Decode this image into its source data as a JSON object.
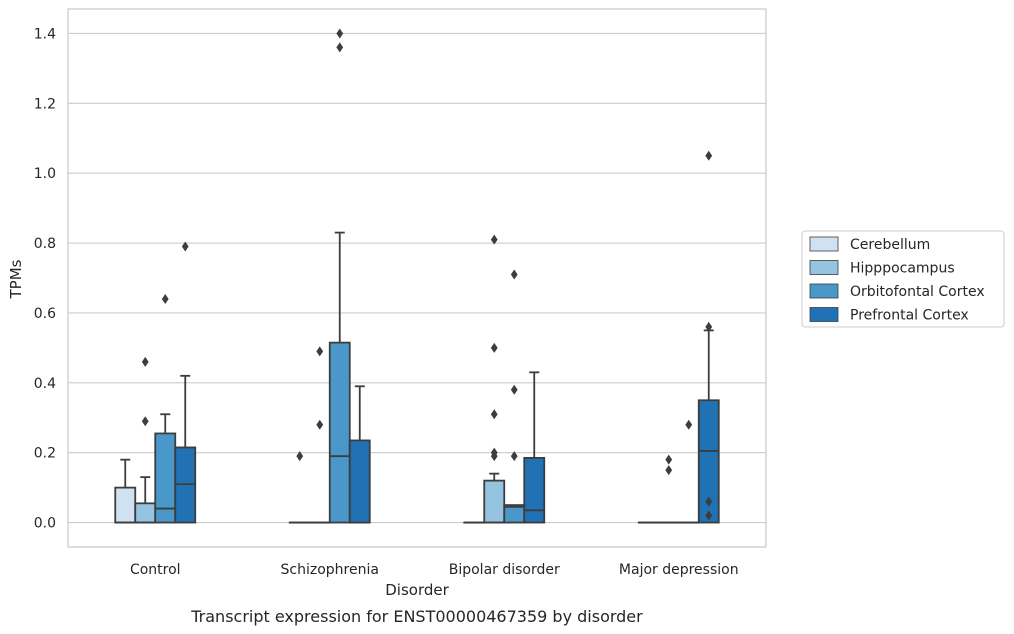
{
  "chart_data": {
    "type": "box",
    "caption": "Transcript expression for ENST00000467359 by disorder",
    "xlabel": "Disorder",
    "ylabel": "TPMs",
    "ylim": [
      -0.07,
      1.47
    ],
    "yticks": [
      "0.0",
      "0.2",
      "0.4",
      "0.6",
      "0.8",
      "1.0",
      "1.2",
      "1.4"
    ],
    "categories": [
      "Control",
      "Schizophrenia",
      "Bipolar disorder",
      "Major depression"
    ],
    "grid": true,
    "legend_position": "right",
    "series": [
      {
        "name": "Cerebellum",
        "color": "#d0e1f2",
        "boxes": [
          {
            "q1": 0.0,
            "median": 0.0,
            "q3": 0.1,
            "whislo": 0.0,
            "whishi": 0.18,
            "fliers": []
          },
          {
            "q1": 0.0,
            "median": 0.0,
            "q3": 0.0,
            "whislo": 0.0,
            "whishi": 0.0,
            "fliers": [
              0.19
            ]
          },
          {
            "q1": 0.0,
            "median": 0.0,
            "q3": 0.0,
            "whislo": 0.0,
            "whishi": 0.0,
            "fliers": []
          },
          {
            "q1": 0.0,
            "median": 0.0,
            "q3": 0.0,
            "whislo": 0.0,
            "whishi": 0.0,
            "fliers": []
          }
        ]
      },
      {
        "name": "Hipppocampus",
        "color": "#94c4df",
        "boxes": [
          {
            "q1": 0.0,
            "median": 0.0,
            "q3": 0.055,
            "whislo": 0.0,
            "whishi": 0.13,
            "fliers": [
              0.29,
              0.46
            ]
          },
          {
            "q1": 0.0,
            "median": 0.0,
            "q3": 0.0,
            "whislo": 0.0,
            "whishi": 0.0,
            "fliers": [
              0.28,
              0.49
            ]
          },
          {
            "q1": 0.0,
            "median": 0.0,
            "q3": 0.12,
            "whislo": 0.0,
            "whishi": 0.14,
            "fliers": [
              0.19,
              0.2,
              0.31,
              0.5,
              0.81
            ]
          },
          {
            "q1": 0.0,
            "median": 0.0,
            "q3": 0.0,
            "whislo": 0.0,
            "whishi": 0.0,
            "fliers": [
              0.15,
              0.18
            ]
          }
        ]
      },
      {
        "name": "Orbitofontal Cortex",
        "color": "#4a98c9",
        "boxes": [
          {
            "q1": 0.0,
            "median": 0.04,
            "q3": 0.255,
            "whislo": 0.0,
            "whishi": 0.31,
            "fliers": [
              0.64
            ]
          },
          {
            "q1": 0.0,
            "median": 0.19,
            "q3": 0.515,
            "whislo": 0.0,
            "whishi": 0.83,
            "fliers": [
              1.36,
              1.4
            ]
          },
          {
            "q1": 0.0,
            "median": 0.045,
            "q3": 0.05,
            "whislo": 0.0,
            "whishi": 0.05,
            "fliers": [
              0.19,
              0.38,
              0.71
            ]
          },
          {
            "q1": 0.0,
            "median": 0.0,
            "q3": 0.0,
            "whislo": 0.0,
            "whishi": 0.0,
            "fliers": [
              0.28
            ]
          }
        ]
      },
      {
        "name": "Prefrontal Cortex",
        "color": "#2171b5",
        "boxes": [
          {
            "q1": 0.0,
            "median": 0.11,
            "q3": 0.215,
            "whislo": 0.0,
            "whishi": 0.42,
            "fliers": [
              0.79
            ]
          },
          {
            "q1": 0.0,
            "median": 0.0,
            "q3": 0.235,
            "whislo": 0.0,
            "whishi": 0.39,
            "fliers": []
          },
          {
            "q1": 0.0,
            "median": 0.035,
            "q3": 0.185,
            "whislo": 0.0,
            "whishi": 0.43,
            "fliers": []
          },
          {
            "q1": 0.0,
            "median": 0.205,
            "q3": 0.35,
            "whislo": 0.0,
            "whishi": 0.55,
            "fliers": [
              0.02,
              0.06,
              0.56,
              1.05
            ]
          }
        ]
      }
    ]
  }
}
